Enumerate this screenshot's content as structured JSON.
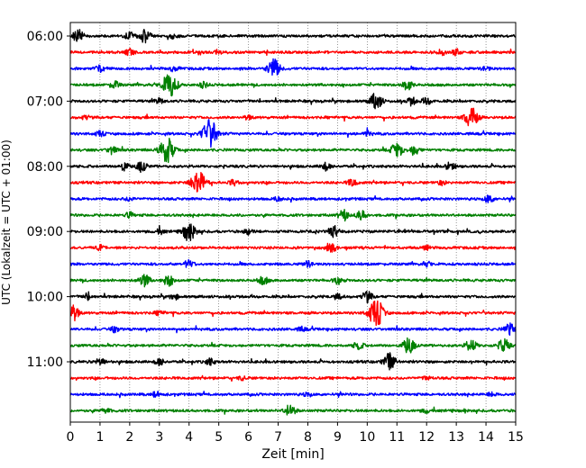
{
  "chart_data": {
    "type": "line",
    "title": "",
    "xlabel": "Zeit  [min]",
    "ylabel": "UTC (Lokalzeit = UTC + 01:00)",
    "xlim": [
      0,
      15
    ],
    "x_ticks": [
      0,
      1,
      2,
      3,
      4,
      5,
      6,
      7,
      8,
      9,
      10,
      11,
      12,
      13,
      14,
      15
    ],
    "x_tick_labels": [
      "0",
      "1",
      "2",
      "3",
      "4",
      "5",
      "6",
      "7",
      "8",
      "9",
      "10",
      "11",
      "12",
      "13",
      "14",
      "15"
    ],
    "vertical_grid": "dotted",
    "trace_interval_min": 15,
    "y_tick_labels": [
      {
        "label": "06:00",
        "trace_index": 0
      },
      {
        "label": "07:00",
        "trace_index": 4
      },
      {
        "label": "08:00",
        "trace_index": 8
      },
      {
        "label": "09:00",
        "trace_index": 12
      },
      {
        "label": "10:00",
        "trace_index": 16
      },
      {
        "label": "11:00",
        "trace_index": 20
      }
    ],
    "colors": [
      "#000000",
      "#ff0000",
      "#0000ff",
      "#008000"
    ],
    "traces": [
      {
        "start": "06:00",
        "color": "#000000",
        "events": [
          [
            0.25,
            1.0
          ],
          [
            2.5,
            1.0
          ],
          [
            2.0,
            0.6
          ],
          [
            3.5,
            0.4
          ]
        ]
      },
      {
        "start": "06:15",
        "color": "#ff0000",
        "events": [
          [
            2.0,
            0.5
          ],
          [
            5.0,
            0.3
          ],
          [
            12.5,
            0.4
          ],
          [
            13.0,
            0.4
          ]
        ]
      },
      {
        "start": "06:30",
        "color": "#0000ff",
        "events": [
          [
            1.0,
            0.5
          ],
          [
            6.85,
            1.5
          ],
          [
            3.5,
            0.4
          ],
          [
            14.0,
            0.3
          ]
        ]
      },
      {
        "start": "06:45",
        "color": "#008000",
        "events": [
          [
            1.5,
            0.6
          ],
          [
            3.35,
            2.0
          ],
          [
            11.35,
            0.8
          ],
          [
            4.5,
            0.4
          ]
        ]
      },
      {
        "start": "07:00",
        "color": "#000000",
        "events": [
          [
            10.3,
            1.3
          ],
          [
            11.5,
            0.6
          ],
          [
            12.0,
            0.5
          ],
          [
            3.0,
            0.4
          ]
        ]
      },
      {
        "start": "07:15",
        "color": "#ff0000",
        "events": [
          [
            13.5,
            1.6
          ],
          [
            0.5,
            0.3
          ],
          [
            6.0,
            0.3
          ]
        ]
      },
      {
        "start": "07:30",
        "color": "#0000ff",
        "events": [
          [
            4.7,
            2.2
          ],
          [
            1.0,
            0.4
          ],
          [
            10.0,
            0.4
          ]
        ]
      },
      {
        "start": "07:45",
        "color": "#008000",
        "events": [
          [
            3.25,
            2.0
          ],
          [
            1.4,
            0.6
          ],
          [
            11.0,
            1.2
          ],
          [
            11.6,
            0.8
          ]
        ]
      },
      {
        "start": "08:00",
        "color": "#000000",
        "events": [
          [
            1.8,
            0.6
          ],
          [
            2.4,
            0.8
          ],
          [
            8.6,
            0.6
          ],
          [
            12.8,
            0.6
          ]
        ]
      },
      {
        "start": "08:15",
        "color": "#ff0000",
        "events": [
          [
            4.3,
            2.0
          ],
          [
            9.5,
            0.6
          ],
          [
            5.5,
            0.4
          ],
          [
            12.5,
            0.3
          ]
        ]
      },
      {
        "start": "08:30",
        "color": "#0000ff",
        "events": [
          [
            14.1,
            0.6
          ],
          [
            7.0,
            0.3
          ],
          [
            2.0,
            0.3
          ]
        ]
      },
      {
        "start": "08:45",
        "color": "#008000",
        "events": [
          [
            9.2,
            0.8
          ],
          [
            9.8,
            0.7
          ],
          [
            2.0,
            0.4
          ]
        ]
      },
      {
        "start": "09:00",
        "color": "#000000",
        "events": [
          [
            4.0,
            1.5
          ],
          [
            8.9,
            0.8
          ],
          [
            3.0,
            0.4
          ],
          [
            6.0,
            0.4
          ]
        ]
      },
      {
        "start": "09:15",
        "color": "#ff0000",
        "events": [
          [
            8.8,
            0.7
          ],
          [
            1.0,
            0.3
          ],
          [
            12.0,
            0.3
          ]
        ]
      },
      {
        "start": "09:30",
        "color": "#0000ff",
        "events": [
          [
            4.0,
            0.6
          ],
          [
            8.0,
            0.4
          ],
          [
            12.0,
            0.3
          ]
        ]
      },
      {
        "start": "09:45",
        "color": "#008000",
        "events": [
          [
            2.5,
            0.9
          ],
          [
            3.3,
            0.8
          ],
          [
            6.5,
            0.6
          ],
          [
            9.0,
            0.5
          ]
        ]
      },
      {
        "start": "10:00",
        "color": "#000000",
        "events": [
          [
            0.6,
            0.5
          ],
          [
            10.0,
            0.8
          ],
          [
            3.5,
            0.4
          ],
          [
            9.0,
            0.4
          ]
        ]
      },
      {
        "start": "10:15",
        "color": "#ff0000",
        "events": [
          [
            0.1,
            1.2
          ],
          [
            10.3,
            2.2
          ],
          [
            3.0,
            0.3
          ]
        ]
      },
      {
        "start": "10:30",
        "color": "#0000ff",
        "events": [
          [
            14.8,
            0.8
          ],
          [
            1.5,
            0.4
          ],
          [
            7.8,
            0.3
          ]
        ]
      },
      {
        "start": "10:45",
        "color": "#008000",
        "events": [
          [
            11.4,
            1.2
          ],
          [
            13.5,
            0.9
          ],
          [
            14.6,
            1.0
          ],
          [
            9.7,
            0.6
          ]
        ]
      },
      {
        "start": "11:00",
        "color": "#000000",
        "events": [
          [
            10.75,
            1.3
          ],
          [
            1.0,
            0.6
          ],
          [
            3.0,
            0.5
          ],
          [
            4.7,
            0.5
          ]
        ]
      },
      {
        "start": "11:15",
        "color": "#ff0000",
        "events": [
          [
            5.8,
            0.3
          ],
          [
            12.0,
            0.3
          ]
        ]
      },
      {
        "start": "11:30",
        "color": "#0000ff",
        "events": [
          [
            2.9,
            0.4
          ],
          [
            8.0,
            0.3
          ],
          [
            14.2,
            0.3
          ]
        ]
      },
      {
        "start": "11:45",
        "color": "#008000",
        "events": [
          [
            7.4,
            0.9
          ],
          [
            1.2,
            0.4
          ],
          [
            12.0,
            0.3
          ]
        ]
      }
    ]
  }
}
